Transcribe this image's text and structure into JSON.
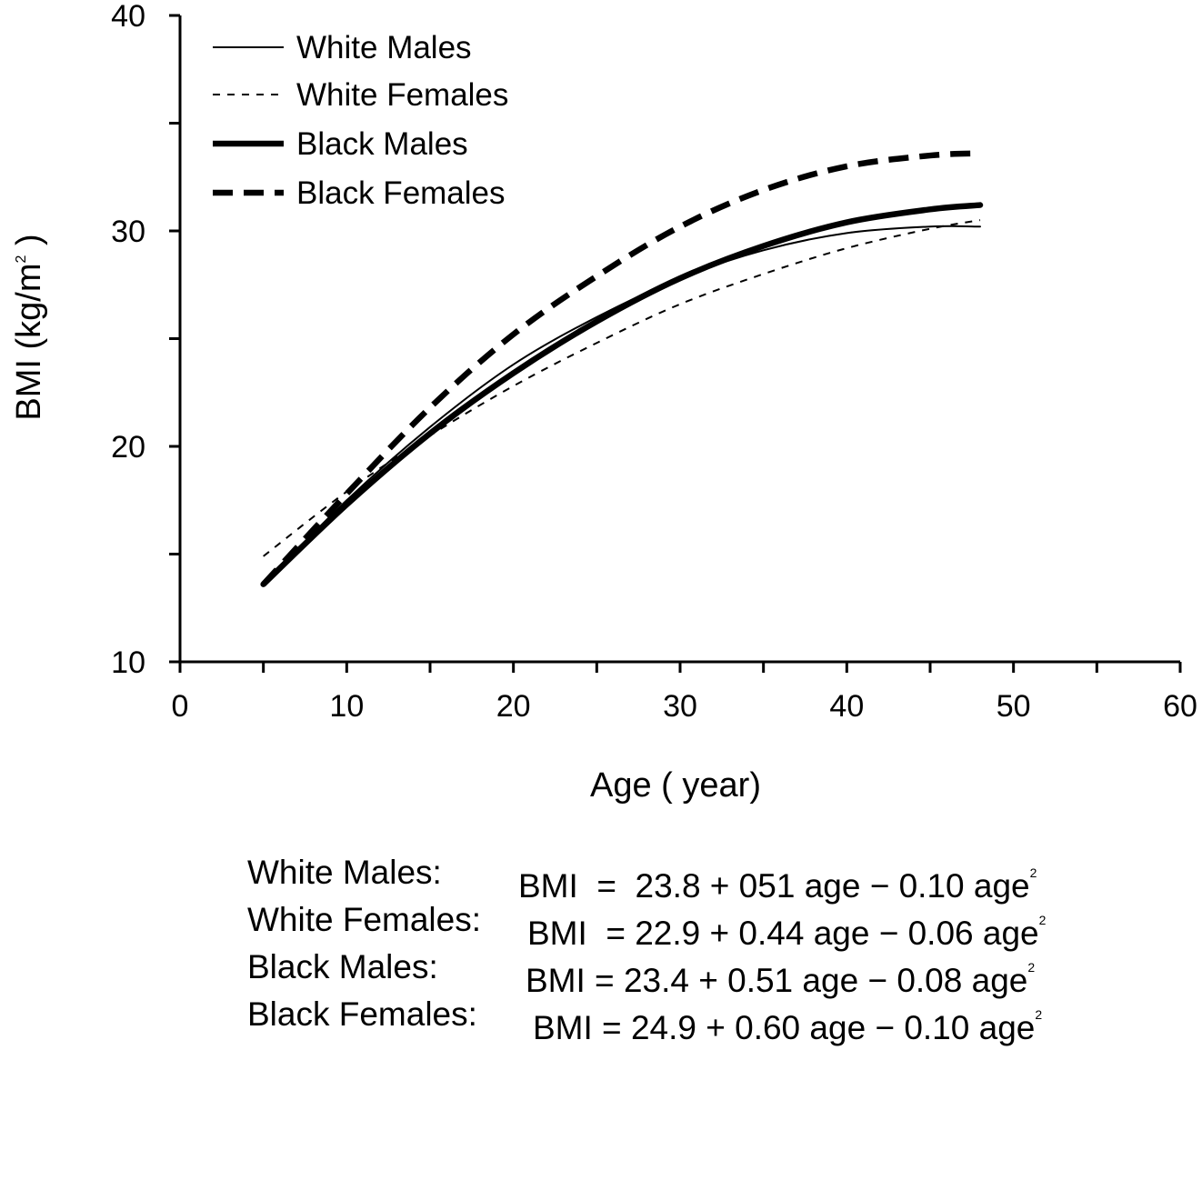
{
  "chart_data": {
    "type": "line",
    "title": "",
    "xlabel": "Age ( year)",
    "ylabel": "BMI (kg/m",
    "ylabel_superscript": "2",
    "ylabel_suffix": " )",
    "xlim": [
      0,
      60
    ],
    "ylim": [
      10,
      40
    ],
    "x_ticks": [
      0,
      10,
      20,
      30,
      40,
      50,
      60
    ],
    "y_ticks": [
      10,
      20,
      30,
      40
    ],
    "grid": false,
    "legend_position": "top-left",
    "x": [
      5,
      10,
      15,
      20,
      25,
      30,
      35,
      40,
      45,
      48
    ],
    "series": [
      {
        "name": "White Males",
        "style": "thin-solid",
        "values": [
          13.6,
          17.5,
          20.9,
          23.8,
          26.0,
          27.8,
          29.1,
          29.9,
          30.2,
          30.2
        ]
      },
      {
        "name": "White Females",
        "style": "thin-dashed",
        "values": [
          14.9,
          17.9,
          20.5,
          22.8,
          24.8,
          26.6,
          28.0,
          29.2,
          30.1,
          30.5
        ]
      },
      {
        "name": "Black Males",
        "style": "thick-solid",
        "values": [
          13.6,
          17.3,
          20.6,
          23.4,
          25.8,
          27.8,
          29.3,
          30.4,
          31.0,
          31.2
        ]
      },
      {
        "name": "Black Females",
        "style": "thick-dashed",
        "values": [
          13.6,
          17.8,
          21.8,
          25.2,
          27.9,
          30.2,
          31.9,
          33.0,
          33.5,
          33.6
        ]
      }
    ]
  },
  "equations": [
    {
      "label": "White Males:",
      "formula": "BMI  =  23.8 + 051 age − 0.10 age",
      "sup": "2"
    },
    {
      "label": "White Females:",
      "formula": "BMI  = 22.9 + 0.44 age − 0.06 age",
      "sup": "2"
    },
    {
      "label": "Black Males:",
      "formula": "BMI = 23.4 + 0.51 age − 0.08 age",
      "sup": "2"
    },
    {
      "label": "Black Females:",
      "formula": "BMI = 24.9 + 0.60 age − 0.10 age",
      "sup": "2"
    }
  ]
}
